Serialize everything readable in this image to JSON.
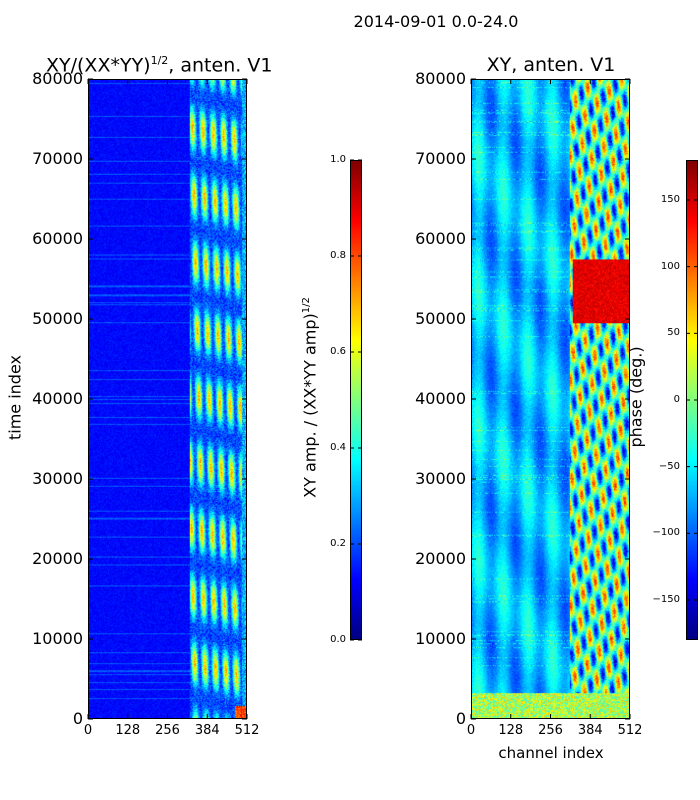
{
  "chart_data": [
    {
      "type": "heatmap",
      "title": "XY/(XX*YY)^{1/2}, anten. V1",
      "title_main": "XY/(XX*YY)",
      "title_exp": "1/2",
      "title_tail": ", anten. V1",
      "xlabel": "",
      "ylabel": "time index",
      "xlim": [
        0,
        512
      ],
      "ylim": [
        0,
        80000
      ],
      "xticks": [
        "0",
        "128",
        "256",
        "384",
        "512"
      ],
      "yticks": [
        "0",
        "10000",
        "20000",
        "30000",
        "40000",
        "50000",
        "60000",
        "70000",
        "80000"
      ],
      "colorbar": {
        "label": "XY amp. / (XX*YY amp)^{1/2}",
        "label_main": "XY amp. / (XX*YY amp)",
        "label_exp": "1/2",
        "range": [
          0.0,
          1.0
        ],
        "ticks": [
          "0.0",
          "0.2",
          "0.4",
          "0.6",
          "0.8",
          "1.0"
        ],
        "colormap": "jet"
      }
    },
    {
      "type": "heatmap",
      "title": "XY, anten. V1",
      "xlabel": "channel index",
      "ylabel": "",
      "xlim": [
        0,
        512
      ],
      "ylim": [
        0,
        80000
      ],
      "xticks": [
        "0",
        "128",
        "256",
        "384",
        "512"
      ],
      "yticks": [
        "0",
        "10000",
        "20000",
        "30000",
        "40000",
        "50000",
        "60000",
        "70000",
        "80000"
      ],
      "colorbar": {
        "label": "phase (deg.)",
        "range": [
          -180,
          180
        ],
        "ticks": [
          "−150",
          "−100",
          "−50",
          "0",
          "50",
          "100",
          "150"
        ],
        "tick_values": [
          -150,
          -100,
          -50,
          0,
          50,
          100,
          150
        ],
        "colormap": "jet"
      }
    }
  ],
  "suptitle": "2014-09-01 0.0-24.0"
}
